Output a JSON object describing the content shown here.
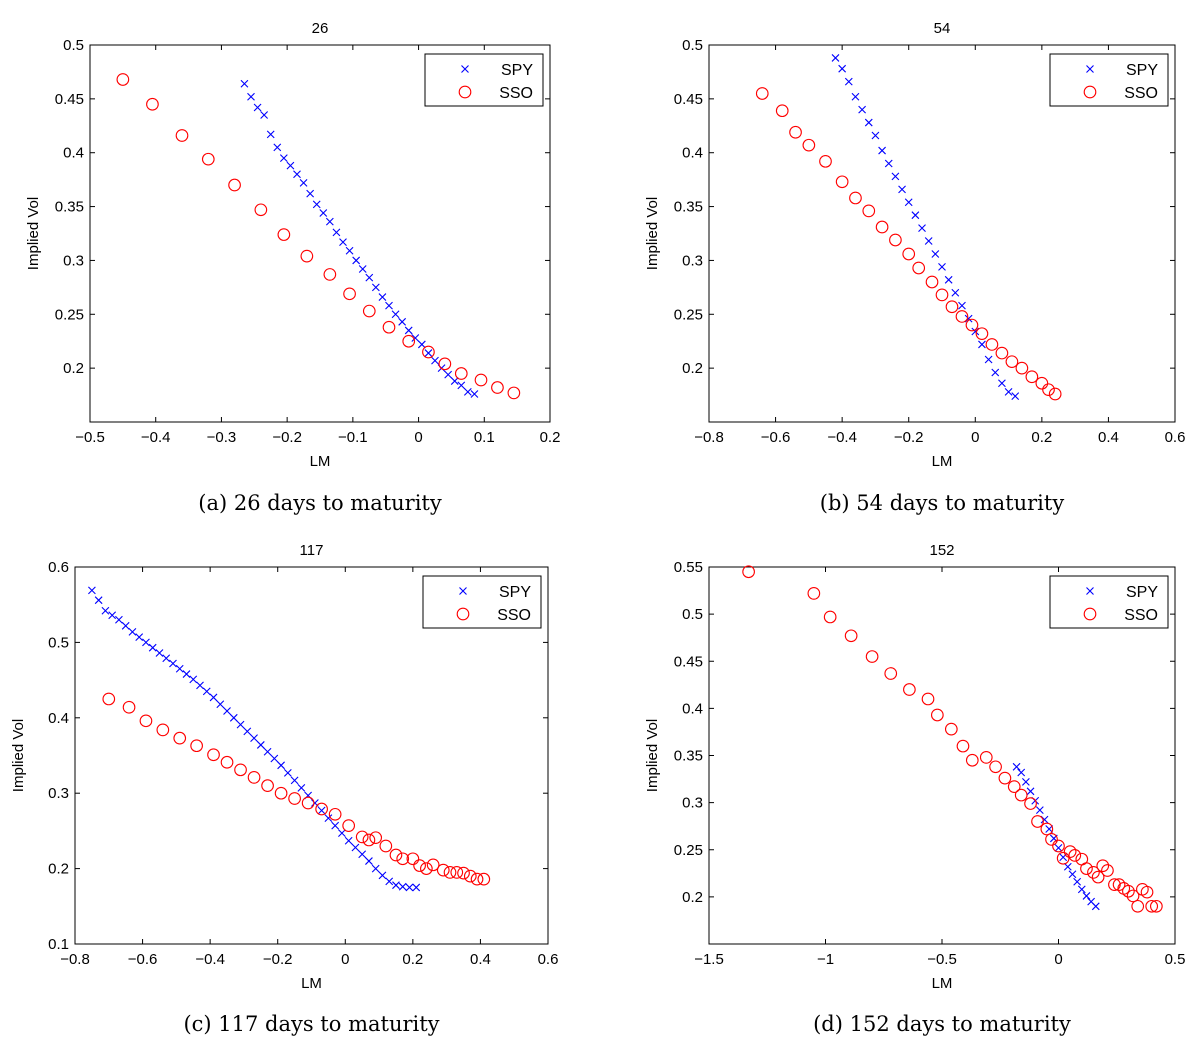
{
  "chart_data": [
    {
      "type": "scatter",
      "title": "26",
      "caption": "(a) 26 days to maturity",
      "xlabel": "LM",
      "ylabel": "Implied Vol",
      "xlim": [
        -0.5,
        0.2
      ],
      "ylim": [
        0.15,
        0.5
      ],
      "xticks": [
        -0.5,
        -0.4,
        -0.3,
        -0.2,
        -0.1,
        0,
        0.1,
        0.2
      ],
      "xtick_labels": [
        "−0.5",
        "−0.4",
        "−0.3",
        "−0.2",
        "−0.1",
        "0",
        "0.1",
        "0.2"
      ],
      "yticks": [
        0.2,
        0.25,
        0.3,
        0.35,
        0.4,
        0.45,
        0.5
      ],
      "ytick_labels": [
        "0.2",
        "0.25",
        "0.3",
        "0.35",
        "0.4",
        "0.45",
        "0.5"
      ],
      "legend_position": "top-right",
      "series": [
        {
          "name": "SPY",
          "marker": "x",
          "color": "#0000ff",
          "x": [
            -0.265,
            -0.255,
            -0.245,
            -0.235,
            -0.225,
            -0.215,
            -0.205,
            -0.195,
            -0.185,
            -0.175,
            -0.165,
            -0.155,
            -0.145,
            -0.135,
            -0.125,
            -0.115,
            -0.105,
            -0.095,
            -0.085,
            -0.075,
            -0.065,
            -0.055,
            -0.045,
            -0.035,
            -0.025,
            -0.015,
            -0.005,
            0.005,
            0.015,
            0.025,
            0.035,
            0.045,
            0.055,
            0.065,
            0.075,
            0.085
          ],
          "y": [
            0.464,
            0.452,
            0.442,
            0.435,
            0.417,
            0.405,
            0.395,
            0.388,
            0.38,
            0.372,
            0.362,
            0.352,
            0.344,
            0.336,
            0.326,
            0.317,
            0.309,
            0.3,
            0.292,
            0.284,
            0.275,
            0.266,
            0.258,
            0.25,
            0.243,
            0.235,
            0.228,
            0.222,
            0.214,
            0.207,
            0.2,
            0.194,
            0.188,
            0.184,
            0.178,
            0.176
          ]
        },
        {
          "name": "SSO",
          "marker": "o",
          "color": "#ff0000",
          "x": [
            -0.45,
            -0.405,
            -0.36,
            -0.32,
            -0.28,
            -0.24,
            -0.205,
            -0.17,
            -0.135,
            -0.105,
            -0.075,
            -0.045,
            -0.015,
            0.015,
            0.04,
            0.065,
            0.095,
            0.12,
            0.145
          ],
          "y": [
            0.468,
            0.445,
            0.416,
            0.394,
            0.37,
            0.347,
            0.324,
            0.304,
            0.287,
            0.269,
            0.253,
            0.238,
            0.225,
            0.215,
            0.204,
            0.195,
            0.189,
            0.182,
            0.177
          ]
        }
      ]
    },
    {
      "type": "scatter",
      "title": "54",
      "caption": "(b) 54 days to maturity",
      "xlabel": "LM",
      "ylabel": "Implied Vol",
      "xlim": [
        -0.8,
        0.6
      ],
      "ylim": [
        0.15,
        0.5
      ],
      "xticks": [
        -0.8,
        -0.6,
        -0.4,
        -0.2,
        0,
        0.2,
        0.4,
        0.6
      ],
      "xtick_labels": [
        "−0.8",
        "−0.6",
        "−0.4",
        "−0.2",
        "0",
        "0.2",
        "0.4",
        "0.6"
      ],
      "yticks": [
        0.2,
        0.25,
        0.3,
        0.35,
        0.4,
        0.45,
        0.5
      ],
      "ytick_labels": [
        "0.2",
        "0.25",
        "0.3",
        "0.35",
        "0.4",
        "0.45",
        "0.5"
      ],
      "legend_position": "top-right",
      "series": [
        {
          "name": "SPY",
          "marker": "x",
          "color": "#0000ff",
          "x": [
            -0.42,
            -0.4,
            -0.38,
            -0.36,
            -0.34,
            -0.32,
            -0.3,
            -0.28,
            -0.26,
            -0.24,
            -0.22,
            -0.2,
            -0.18,
            -0.16,
            -0.14,
            -0.12,
            -0.1,
            -0.08,
            -0.06,
            -0.04,
            -0.02,
            0.0,
            0.02,
            0.04,
            0.06,
            0.08,
            0.1,
            0.12
          ],
          "y": [
            0.488,
            0.478,
            0.466,
            0.452,
            0.44,
            0.428,
            0.416,
            0.402,
            0.39,
            0.378,
            0.366,
            0.354,
            0.342,
            0.33,
            0.318,
            0.306,
            0.294,
            0.282,
            0.27,
            0.258,
            0.246,
            0.234,
            0.222,
            0.208,
            0.196,
            0.186,
            0.178,
            0.174
          ]
        },
        {
          "name": "SSO",
          "marker": "o",
          "color": "#ff0000",
          "x": [
            -0.64,
            -0.58,
            -0.54,
            -0.5,
            -0.45,
            -0.4,
            -0.36,
            -0.32,
            -0.28,
            -0.24,
            -0.2,
            -0.17,
            -0.13,
            -0.1,
            -0.07,
            -0.04,
            -0.01,
            0.02,
            0.05,
            0.08,
            0.11,
            0.14,
            0.17,
            0.2,
            0.22,
            0.24
          ],
          "y": [
            0.455,
            0.439,
            0.419,
            0.407,
            0.392,
            0.373,
            0.358,
            0.346,
            0.331,
            0.319,
            0.306,
            0.293,
            0.28,
            0.268,
            0.257,
            0.248,
            0.24,
            0.232,
            0.222,
            0.214,
            0.206,
            0.2,
            0.192,
            0.186,
            0.18,
            0.176
          ]
        }
      ]
    },
    {
      "type": "scatter",
      "title": "117",
      "caption": "(c) 117 days to maturity",
      "xlabel": "LM",
      "ylabel": "Implied Vol",
      "xlim": [
        -0.8,
        0.6
      ],
      "ylim": [
        0.1,
        0.6
      ],
      "xticks": [
        -0.8,
        -0.6,
        -0.4,
        -0.2,
        0,
        0.2,
        0.4,
        0.6
      ],
      "xtick_labels": [
        "−0.8",
        "−0.6",
        "−0.4",
        "−0.2",
        "0",
        "0.2",
        "0.4",
        "0.6"
      ],
      "yticks": [
        0.1,
        0.2,
        0.3,
        0.4,
        0.5,
        0.6
      ],
      "ytick_labels": [
        "0.1",
        "0.2",
        "0.3",
        "0.4",
        "0.5",
        "0.6"
      ],
      "legend_position": "top-right",
      "series": [
        {
          "name": "SPY",
          "marker": "x",
          "color": "#0000ff",
          "x": [
            -0.75,
            -0.73,
            -0.71,
            -0.69,
            -0.67,
            -0.65,
            -0.63,
            -0.61,
            -0.59,
            -0.57,
            -0.55,
            -0.53,
            -0.51,
            -0.49,
            -0.47,
            -0.45,
            -0.43,
            -0.41,
            -0.39,
            -0.37,
            -0.35,
            -0.33,
            -0.31,
            -0.29,
            -0.27,
            -0.25,
            -0.23,
            -0.21,
            -0.19,
            -0.17,
            -0.15,
            -0.13,
            -0.11,
            -0.09,
            -0.07,
            -0.05,
            -0.03,
            -0.01,
            0.01,
            0.03,
            0.05,
            0.07,
            0.09,
            0.11,
            0.13,
            0.15,
            0.17,
            0.19,
            0.21
          ],
          "y": [
            0.569,
            0.556,
            0.542,
            0.536,
            0.53,
            0.522,
            0.514,
            0.507,
            0.5,
            0.493,
            0.486,
            0.479,
            0.472,
            0.465,
            0.458,
            0.451,
            0.443,
            0.435,
            0.427,
            0.418,
            0.409,
            0.4,
            0.391,
            0.382,
            0.373,
            0.364,
            0.355,
            0.346,
            0.337,
            0.327,
            0.317,
            0.307,
            0.297,
            0.287,
            0.277,
            0.267,
            0.257,
            0.247,
            0.237,
            0.228,
            0.219,
            0.21,
            0.2,
            0.191,
            0.183,
            0.178,
            0.176,
            0.175,
            0.175
          ]
        },
        {
          "name": "SSO",
          "marker": "o",
          "color": "#ff0000",
          "x": [
            -0.7,
            -0.64,
            -0.59,
            -0.54,
            -0.49,
            -0.44,
            -0.39,
            -0.35,
            -0.31,
            -0.27,
            -0.23,
            -0.19,
            -0.15,
            -0.11,
            -0.07,
            -0.03,
            0.01,
            0.05,
            0.07,
            0.09,
            0.12,
            0.15,
            0.17,
            0.2,
            0.22,
            0.24,
            0.26,
            0.29,
            0.31,
            0.33,
            0.35,
            0.37,
            0.39,
            0.41
          ],
          "y": [
            0.425,
            0.414,
            0.396,
            0.384,
            0.373,
            0.363,
            0.351,
            0.341,
            0.331,
            0.321,
            0.31,
            0.3,
            0.293,
            0.287,
            0.279,
            0.272,
            0.257,
            0.242,
            0.238,
            0.241,
            0.23,
            0.218,
            0.213,
            0.213,
            0.204,
            0.2,
            0.205,
            0.198,
            0.195,
            0.195,
            0.194,
            0.19,
            0.186,
            0.186
          ]
        }
      ]
    },
    {
      "type": "scatter",
      "title": "152",
      "caption": "(d) 152 days to maturity",
      "xlabel": "LM",
      "ylabel": "Implied Vol",
      "xlim": [
        -1.5,
        0.5
      ],
      "ylim": [
        0.15,
        0.55
      ],
      "xticks": [
        -1.5,
        -1,
        -0.5,
        0,
        0.5
      ],
      "xtick_labels": [
        "−1.5",
        "−1",
        "−0.5",
        "0",
        "0.5"
      ],
      "yticks": [
        0.2,
        0.25,
        0.3,
        0.35,
        0.4,
        0.45,
        0.5,
        0.55
      ],
      "ytick_labels": [
        "0.2",
        "0.25",
        "0.3",
        "0.35",
        "0.4",
        "0.45",
        "0.5",
        "0.55"
      ],
      "legend_position": "top-right",
      "series": [
        {
          "name": "SPY",
          "marker": "x",
          "color": "#0000ff",
          "x": [
            -0.18,
            -0.16,
            -0.14,
            -0.12,
            -0.1,
            -0.08,
            -0.06,
            -0.04,
            -0.02,
            0.0,
            0.02,
            0.04,
            0.06,
            0.08,
            0.1,
            0.12,
            0.14,
            0.16
          ],
          "y": [
            0.338,
            0.332,
            0.322,
            0.312,
            0.302,
            0.292,
            0.282,
            0.272,
            0.262,
            0.252,
            0.242,
            0.232,
            0.224,
            0.216,
            0.208,
            0.201,
            0.195,
            0.19
          ]
        },
        {
          "name": "SSO",
          "marker": "o",
          "color": "#ff0000",
          "x": [
            -1.33,
            -1.05,
            -0.98,
            -0.89,
            -0.8,
            -0.72,
            -0.64,
            -0.56,
            -0.52,
            -0.46,
            -0.41,
            -0.37,
            -0.31,
            -0.27,
            -0.23,
            -0.19,
            -0.16,
            -0.12,
            -0.09,
            -0.05,
            -0.03,
            0.0,
            0.02,
            0.05,
            0.07,
            0.1,
            0.12,
            0.15,
            0.17,
            0.19,
            0.21,
            0.24,
            0.26,
            0.28,
            0.3,
            0.32,
            0.34,
            0.36,
            0.38,
            0.4,
            0.42
          ],
          "y": [
            0.545,
            0.522,
            0.497,
            0.477,
            0.455,
            0.437,
            0.42,
            0.41,
            0.393,
            0.378,
            0.36,
            0.345,
            0.348,
            0.338,
            0.326,
            0.317,
            0.308,
            0.299,
            0.28,
            0.272,
            0.261,
            0.254,
            0.241,
            0.248,
            0.244,
            0.24,
            0.23,
            0.226,
            0.221,
            0.233,
            0.228,
            0.213,
            0.213,
            0.209,
            0.206,
            0.201,
            0.19,
            0.208,
            0.205,
            0.19,
            0.19
          ]
        }
      ]
    }
  ]
}
